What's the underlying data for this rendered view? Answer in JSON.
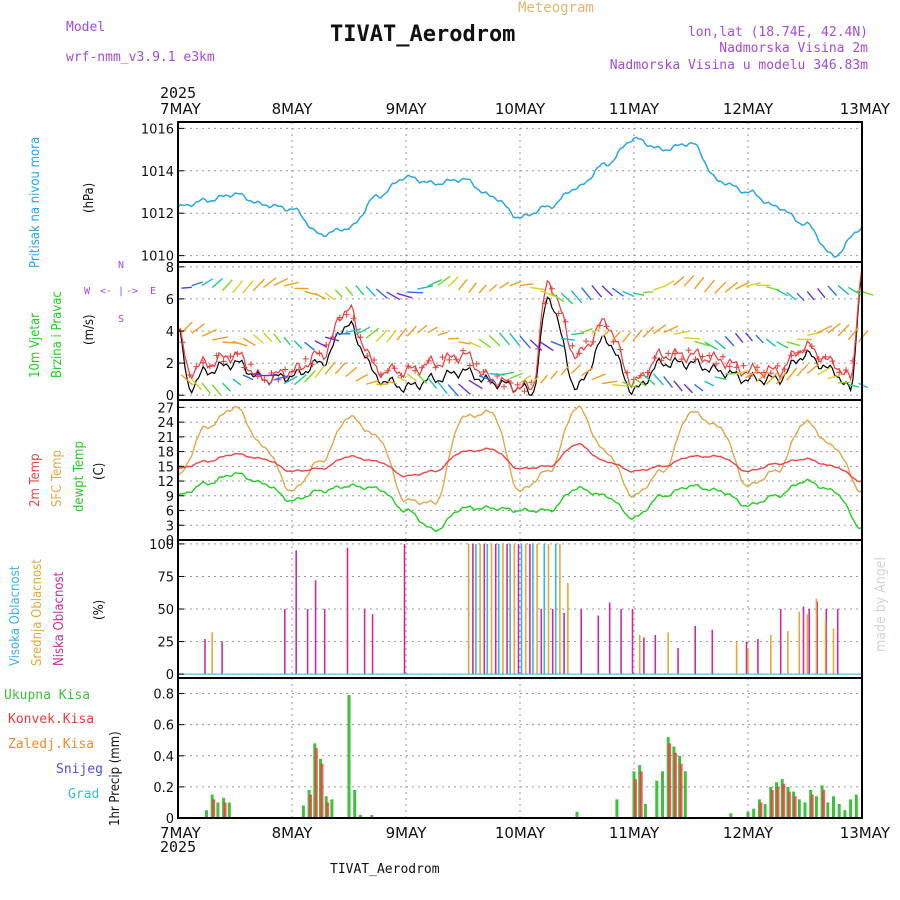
{
  "header": {
    "model_label": "Model",
    "model_name": "wrf-nmm_v3.9.1  e3km",
    "meteogram": "Meteogram",
    "station": "TIVAT_Aerodrom",
    "lonlat": "lon,lat (18.74E, 42.4N)",
    "elevation": "Nadmorska Visina 2m",
    "model_elevation": "Nadmorska Visina u modelu 346.83m",
    "year_top": "2025",
    "year_bottom": "2025",
    "footer_station": "TIVAT_Aerodrom",
    "credit": "made by Angel"
  },
  "colors": {
    "pressure": "#2aa7e3",
    "wind_black": "#000000",
    "gust": "#ee3a3a",
    "temp2m": "#ee4444",
    "sfc_temp": "#e0a84a",
    "dewpt": "#1fd01f",
    "high_cloud": "#3bb4e6",
    "mid_cloud": "#e2aa3a",
    "low_cloud": "#cc2b9c",
    "total_precip": "#3fc13f",
    "conv_precip": "#ee3a3a",
    "frozen": "#f08a30",
    "snow": "#4e4ee0",
    "hail": "#38c0c0",
    "purple": "#a54ad9"
  },
  "chart_data": [
    {
      "type": "line",
      "title": "Pritisak na nivou mora",
      "ylabel": "(hPa)",
      "x_labels": [
        "7MAY",
        "8MAY",
        "9MAY",
        "10MAY",
        "11MAY",
        "12MAY",
        "13MAY"
      ],
      "ylim": [
        1009.7,
        1016.3
      ],
      "yticks": [
        "1010",
        "1012",
        "1014",
        "1016"
      ],
      "series": [
        {
          "name": "MSLP",
          "x": [
            0,
            0.25,
            0.5,
            0.75,
            1,
            1.25,
            1.5,
            1.75,
            2,
            2.25,
            2.5,
            2.75,
            3,
            3.25,
            3.5,
            3.75,
            4,
            4.25,
            4.5,
            4.75,
            5,
            5.25,
            5.5,
            5.75,
            6
          ],
          "values": [
            1012.3,
            1012.6,
            1012.9,
            1012.4,
            1012.2,
            1011.0,
            1011.3,
            1012.8,
            1013.7,
            1013.4,
            1013.6,
            1012.8,
            1011.8,
            1012.3,
            1013.2,
            1014.3,
            1015.5,
            1015.0,
            1015.3,
            1013.5,
            1013.0,
            1012.3,
            1011.5,
            1010.0,
            1011.3
          ]
        }
      ]
    },
    {
      "type": "line",
      "title": "10m Vjetar Brzina i Pravac",
      "ylabel": "(m/s)",
      "ylim": [
        -0.3,
        8.3
      ],
      "yticks": [
        "0",
        "2",
        "4",
        "6",
        "8"
      ],
      "compass": [
        "W",
        "<-",
        "|",
        "->",
        "E",
        "N",
        "S"
      ],
      "series": [
        {
          "name": "wind speed",
          "x": [
            0,
            0.1,
            0.25,
            0.5,
            0.75,
            1,
            1.25,
            1.5,
            1.6,
            1.75,
            2,
            2.25,
            2.5,
            2.75,
            3,
            3.1,
            3.25,
            3.5,
            3.75,
            4,
            4.25,
            4.5,
            4.75,
            5,
            5.25,
            5.5,
            5.75,
            5.9,
            6
          ],
          "values": [
            4.0,
            0.5,
            1.5,
            2.0,
            1.0,
            1.2,
            2.0,
            4.5,
            3.0,
            1.0,
            0.5,
            1.0,
            1.5,
            0.8,
            0.5,
            0.1,
            6.0,
            0.5,
            3.5,
            0.3,
            2.0,
            2.0,
            1.5,
            1.0,
            1.0,
            2.5,
            1.5,
            0.3,
            7.5
          ]
        },
        {
          "name": "gust",
          "x": [
            0,
            0.1,
            0.25,
            0.5,
            0.75,
            1,
            1.25,
            1.5,
            1.6,
            1.75,
            2,
            2.25,
            2.5,
            2.75,
            3,
            3.1,
            3.25,
            3.5,
            3.75,
            4,
            4.25,
            4.5,
            4.75,
            5,
            5.25,
            5.5,
            5.75,
            5.9,
            6
          ],
          "values": [
            4.0,
            1.5,
            2.0,
            2.5,
            1.0,
            1.5,
            2.5,
            5.5,
            3.5,
            1.5,
            1.5,
            2.0,
            2.5,
            1.0,
            0.5,
            0.5,
            7.0,
            2.5,
            4.5,
            0.8,
            2.5,
            2.5,
            2.2,
            1.5,
            1.5,
            3.0,
            2.0,
            1.0,
            7.8
          ]
        }
      ]
    },
    {
      "type": "line",
      "ylabel": "(C)",
      "legend": [
        "2m Temp",
        "SFC Temp",
        "dewpt Temp"
      ],
      "ylim": [
        0,
        28.5
      ],
      "yticks": [
        "0",
        "3",
        "6",
        "9",
        "12",
        "15",
        "18",
        "21",
        "24",
        "27"
      ],
      "series": [
        {
          "name": "2m Temp",
          "x": [
            0,
            0.25,
            0.5,
            0.75,
            1,
            1.25,
            1.5,
            1.75,
            2,
            2.25,
            2.5,
            2.75,
            3,
            3.25,
            3.5,
            3.75,
            4,
            4.25,
            4.5,
            4.75,
            5,
            5.25,
            5.5,
            5.75,
            6
          ],
          "values": [
            14.5,
            16.0,
            17.5,
            16.5,
            14.0,
            14.5,
            17.0,
            16.0,
            13.0,
            14.0,
            18.0,
            18.5,
            14.5,
            15.0,
            19.5,
            16.0,
            14.0,
            15.0,
            17.0,
            17.0,
            14.0,
            15.5,
            16.5,
            15.0,
            12.0
          ]
        },
        {
          "name": "SFC Temp",
          "x": [
            0,
            0.25,
            0.5,
            0.75,
            1,
            1.25,
            1.5,
            1.75,
            2,
            2.25,
            2.5,
            2.75,
            3,
            3.25,
            3.5,
            3.75,
            4,
            4.25,
            4.5,
            4.75,
            5,
            5.25,
            5.5,
            5.75,
            6
          ],
          "values": [
            13.0,
            23.0,
            27.0,
            19.0,
            10.0,
            16.0,
            25.0,
            21.0,
            8.0,
            7.5,
            25.0,
            26.0,
            10.0,
            14.0,
            27.0,
            18.0,
            9.0,
            14.0,
            26.0,
            23.0,
            11.0,
            14.0,
            24.0,
            19.0,
            10.0
          ]
        },
        {
          "name": "dewpt Temp",
          "x": [
            0,
            0.25,
            0.5,
            0.75,
            1,
            1.25,
            1.5,
            1.75,
            2,
            2.25,
            2.5,
            2.75,
            3,
            3.25,
            3.5,
            3.75,
            4,
            4.25,
            4.5,
            4.75,
            5,
            5.25,
            5.5,
            5.75,
            6
          ],
          "values": [
            9.0,
            11.5,
            13.5,
            11.5,
            8.0,
            10.0,
            11.0,
            10.5,
            6.0,
            2.0,
            6.5,
            6.5,
            6.0,
            6.0,
            10.5,
            9.0,
            4.5,
            9.0,
            11.0,
            10.0,
            7.0,
            9.0,
            12.0,
            10.0,
            2.5
          ]
        }
      ]
    },
    {
      "type": "bar",
      "ylabel": "(%)",
      "legend": [
        "Visoka Oblacnost",
        "Srednja Oblacnost",
        "Niska Oblacnost"
      ],
      "ylim": [
        -3,
        103
      ],
      "yticks": [
        "0",
        "25",
        "50",
        "75",
        "100"
      ],
      "series": [
        {
          "name": "Niska Oblacnost",
          "x": [
            0.25,
            0.4,
            0.95,
            1.05,
            1.15,
            1.22,
            1.3,
            1.5,
            1.65,
            1.72,
            2.0,
            2.6,
            2.7,
            2.8,
            2.9,
            3.0,
            3.1,
            3.2,
            3.3,
            3.4,
            3.55,
            3.7,
            3.8,
            3.9,
            4.0,
            4.1,
            4.2,
            4.4,
            4.55,
            4.7,
            5.0,
            5.1,
            5.3,
            5.5,
            5.55,
            5.62,
            5.7,
            5.8
          ],
          "values": [
            27,
            25,
            50,
            95,
            50,
            72,
            50,
            97,
            50,
            46,
            100,
            100,
            100,
            100,
            100,
            100,
            100,
            50,
            50,
            47,
            50,
            45,
            55,
            50,
            50,
            28,
            30,
            20,
            37,
            34,
            25,
            27,
            50,
            52,
            50,
            56,
            50,
            50
          ]
        },
        {
          "name": "Srednja Oblacnost",
          "x": [
            0.3,
            2.55,
            2.65,
            2.75,
            2.85,
            2.95,
            3.05,
            3.15,
            3.25,
            3.35,
            3.42,
            4.05,
            4.3,
            4.9,
            5.0,
            5.2,
            5.35,
            5.45,
            5.52,
            5.6,
            5.68,
            5.75
          ],
          "values": [
            32,
            100,
            100,
            100,
            100,
            100,
            100,
            100,
            100,
            100,
            70,
            30,
            32,
            25,
            20,
            30,
            33,
            48,
            46,
            58,
            40,
            35
          ]
        },
        {
          "name": "Visoka Oblacnost",
          "x": [
            2.6,
            2.7,
            2.8,
            2.9,
            3.0,
            3.1,
            3.2,
            3.3
          ],
          "values": [
            100,
            100,
            100,
            100,
            100,
            100,
            100,
            100
          ]
        }
      ]
    },
    {
      "type": "bar",
      "ylabel": "1hr Precip (mm)",
      "legend": [
        "Ukupna Kisa",
        "Konvek.Kisa",
        "Zaledj.Kisa",
        "Snijeg",
        "Grad"
      ],
      "ylim": [
        0,
        0.9
      ],
      "yticks": [
        "0",
        "0.2",
        "0.4",
        "0.6",
        "0.8"
      ],
      "series": [
        {
          "name": "Ukupna Kisa",
          "x": [
            0.25,
            0.3,
            0.35,
            0.4,
            0.45,
            1.1,
            1.15,
            1.2,
            1.25,
            1.3,
            1.35,
            1.5,
            1.55,
            1.6,
            1.7,
            3.5,
            3.85,
            4.0,
            4.05,
            4.1,
            4.2,
            4.25,
            4.3,
            4.35,
            4.4,
            4.45,
            4.85,
            5.0,
            5.05,
            5.1,
            5.15,
            5.2,
            5.25,
            5.3,
            5.35,
            5.4,
            5.45,
            5.5,
            5.55,
            5.6,
            5.65,
            5.7,
            5.75,
            5.8,
            5.85,
            5.9,
            5.95
          ],
          "values": [
            0.05,
            0.15,
            0.1,
            0.13,
            0.1,
            0.08,
            0.18,
            0.48,
            0.38,
            0.14,
            0.12,
            0.79,
            0.18,
            0.02,
            0.02,
            0.04,
            0.12,
            0.3,
            0.34,
            0.09,
            0.24,
            0.3,
            0.52,
            0.46,
            0.4,
            0.3,
            0.03,
            0.04,
            0.06,
            0.12,
            0.09,
            0.2,
            0.23,
            0.25,
            0.2,
            0.17,
            0.12,
            0.1,
            0.18,
            0.14,
            0.21,
            0.1,
            0.14,
            0.09,
            0.05,
            0.12,
            0.15
          ]
        },
        {
          "name": "Konvek.Kisa",
          "x": [
            0.3,
            0.4,
            1.15,
            1.2,
            1.25,
            1.3,
            4.0,
            4.05,
            4.3,
            4.35,
            4.4,
            5.1,
            5.2,
            5.25,
            5.3,
            5.35,
            5.4,
            5.55,
            5.65
          ],
          "values": [
            0.12,
            0.1,
            0.15,
            0.45,
            0.35,
            0.1,
            0.25,
            0.3,
            0.48,
            0.42,
            0.35,
            0.1,
            0.18,
            0.2,
            0.22,
            0.17,
            0.14,
            0.15,
            0.18
          ]
        }
      ]
    }
  ]
}
